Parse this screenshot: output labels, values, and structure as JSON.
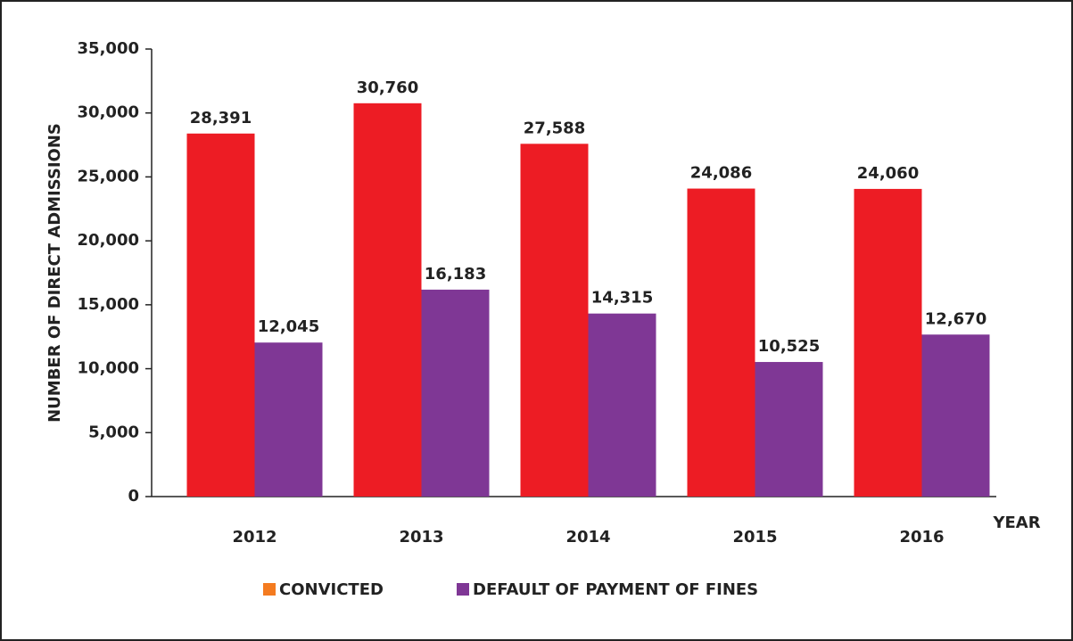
{
  "chart_data": {
    "type": "bar",
    "y_label": "NUMBER OF DIRECT ADMISSIONS",
    "x_label": "YEAR",
    "categories": [
      "2012",
      "2013",
      "2014",
      "2015",
      "2016"
    ],
    "series": [
      {
        "name": "CONVICTED",
        "color": "#ed1c24",
        "legend_color": "#f47b20",
        "values": [
          28391,
          30760,
          27588,
          24086,
          24060
        ],
        "value_labels": [
          "28,391",
          "30,760",
          "27,588",
          "24,086",
          "24,060"
        ]
      },
      {
        "name": "DEFAULT OF PAYMENT OF FINES",
        "color": "#7f3795",
        "legend_color": "#7f3795",
        "values": [
          12045,
          16183,
          14315,
          10525,
          12670
        ],
        "value_labels": [
          "12,045",
          "16,183",
          "14,315",
          "10,525",
          "12,670"
        ]
      }
    ],
    "ylim": [
      0,
      35000
    ],
    "yticks": [
      0,
      {
        "value": 5000,
        "label": "5,000"
      },
      {
        "value": 10000,
        "label": "10,000"
      },
      {
        "value": 15000,
        "label": "15,000"
      },
      {
        "value": 20000,
        "label": "20,000"
      },
      {
        "value": 25000,
        "label": "25,000"
      },
      {
        "value": 30000,
        "label": "30,000"
      },
      {
        "value": 35000,
        "label": "35,000"
      }
    ],
    "grid": false,
    "legend": "bottom"
  }
}
